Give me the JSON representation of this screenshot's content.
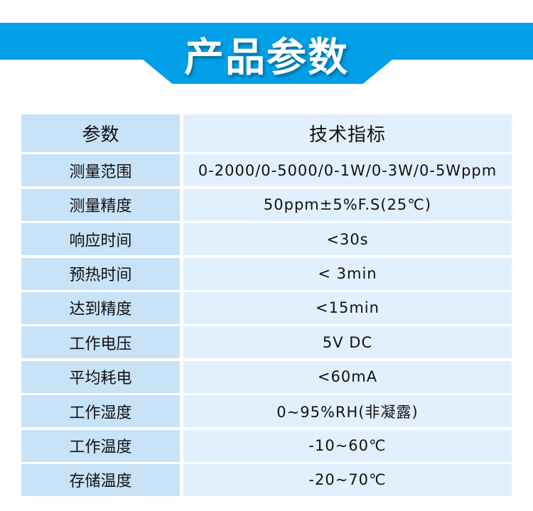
{
  "title": "产品参数",
  "table": {
    "headers": [
      "参数",
      "技术指标"
    ],
    "rows": [
      [
        "测量范围",
        "0-2000/0-5000/0-1W/0-3W/0-5Wppm"
      ],
      [
        "测量精度",
        "50ppm±5%F.S(25℃)"
      ],
      [
        "响应时间",
        "<30s"
      ],
      [
        "预热时间",
        "< 3min"
      ],
      [
        "达到精度",
        "<15min"
      ],
      [
        "工作电压",
        "5V DC"
      ],
      [
        "平均耗电",
        "<60mA"
      ],
      [
        "工作湿度",
        "0~95%RH(非凝露)"
      ],
      [
        "工作温度",
        "-10~60℃"
      ],
      [
        "存储温度",
        "-20~70℃"
      ]
    ]
  },
  "colors": {
    "banner": "#009fe8",
    "param_cell": "#c8e2f8",
    "value_cell": "#e2f0fd"
  }
}
